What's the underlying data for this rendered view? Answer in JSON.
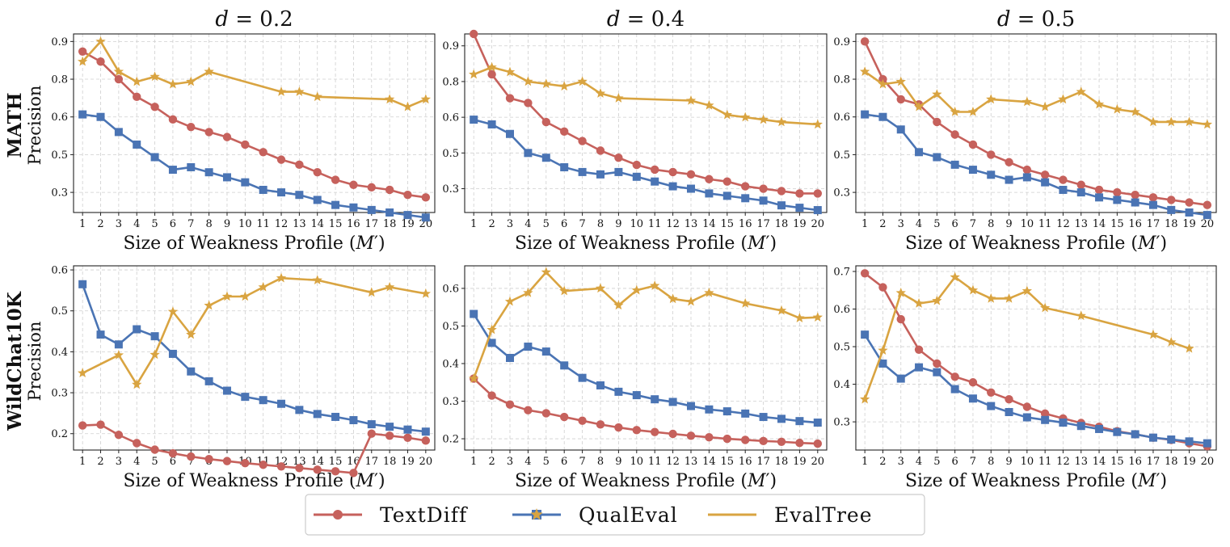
{
  "colors": {
    "TextDiff": "#c6615c",
    "QualEval": "#4a74b4",
    "EvalTree": "#d9a441"
  },
  "x_label_prefix": "Size of Weakness Profile (",
  "x_label_var": "M",
  "x_label_suffix": "′)",
  "row_titles": [
    "MATH",
    "WildChat10K"
  ],
  "y_label": "Precision",
  "legend": [
    "TextDiff",
    "QualEval",
    "EvalTree"
  ],
  "chart_data": [
    {
      "type": "line",
      "title_var": "d",
      "title_value": "= 0.2",
      "row": "MATH",
      "ylabel": "Precision",
      "ylim": [
        0.22,
        0.93
      ],
      "yticks": [
        0.3,
        0.45,
        0.6,
        0.75,
        0.9
      ],
      "ytick_labels": [
        "0.3",
        "0.5",
        "0.6",
        "0.8",
        "0.9"
      ],
      "grid": true,
      "series": [
        {
          "name": "TextDiff",
          "marker": "circle",
          "x": [
            1,
            2,
            3,
            4,
            5,
            6,
            7,
            8,
            9,
            10,
            11,
            12,
            13,
            14,
            15,
            16,
            17,
            18,
            19,
            20
          ],
          "values": [
            0.86,
            0.82,
            0.75,
            0.68,
            0.64,
            0.59,
            0.56,
            0.54,
            0.52,
            0.49,
            0.46,
            0.43,
            0.41,
            0.38,
            0.35,
            0.33,
            0.32,
            0.31,
            0.29,
            0.28
          ]
        },
        {
          "name": "QualEval",
          "marker": "square",
          "x": [
            1,
            2,
            3,
            4,
            5,
            6,
            7,
            8,
            9,
            10,
            11,
            12,
            13,
            14,
            15,
            16,
            17,
            18,
            19,
            20
          ],
          "values": [
            0.61,
            0.6,
            0.54,
            0.49,
            0.44,
            0.39,
            0.4,
            0.38,
            0.36,
            0.34,
            0.31,
            0.3,
            0.29,
            0.27,
            0.25,
            0.24,
            0.23,
            0.22,
            0.21,
            0.2
          ]
        },
        {
          "name": "EvalTree",
          "marker": "star",
          "x": [
            1,
            2,
            3,
            4,
            5,
            6,
            7,
            8,
            12,
            13,
            14,
            18,
            19,
            20
          ],
          "values": [
            0.82,
            0.9,
            0.78,
            0.74,
            0.76,
            0.73,
            0.74,
            0.78,
            0.7,
            0.7,
            0.68,
            0.67,
            0.64,
            0.67
          ]
        }
      ]
    },
    {
      "type": "line",
      "title_var": "d",
      "title_value": "= 0.4",
      "row": "MATH",
      "ylabel": "Precision",
      "ylim": [
        0.2,
        0.95
      ],
      "yticks": [
        0.3,
        0.45,
        0.6,
        0.75,
        0.9
      ],
      "ytick_labels": [
        "0.3",
        "0.5",
        "0.6",
        "0.8",
        "0.9"
      ],
      "grid": true,
      "series": [
        {
          "name": "TextDiff",
          "marker": "circle",
          "x": [
            1,
            2,
            3,
            4,
            5,
            6,
            7,
            8,
            9,
            10,
            11,
            12,
            13,
            14,
            15,
            16,
            17,
            18,
            19,
            20
          ],
          "values": [
            0.95,
            0.78,
            0.68,
            0.66,
            0.58,
            0.54,
            0.5,
            0.46,
            0.43,
            0.4,
            0.38,
            0.37,
            0.36,
            0.34,
            0.33,
            0.31,
            0.3,
            0.29,
            0.28,
            0.28
          ]
        },
        {
          "name": "QualEval",
          "marker": "square",
          "x": [
            1,
            2,
            3,
            4,
            5,
            6,
            7,
            8,
            9,
            10,
            11,
            12,
            13,
            14,
            15,
            16,
            17,
            18,
            19,
            20
          ],
          "values": [
            0.59,
            0.57,
            0.53,
            0.45,
            0.43,
            0.39,
            0.37,
            0.36,
            0.37,
            0.35,
            0.33,
            0.31,
            0.3,
            0.28,
            0.27,
            0.26,
            0.25,
            0.23,
            0.22,
            0.21
          ]
        },
        {
          "name": "EvalTree",
          "marker": "star",
          "x": [
            1,
            2,
            3,
            4,
            5,
            6,
            7,
            8,
            9,
            13,
            14,
            15,
            16,
            17,
            18,
            20
          ],
          "values": [
            0.78,
            0.81,
            0.79,
            0.75,
            0.74,
            0.73,
            0.75,
            0.7,
            0.68,
            0.67,
            0.65,
            0.61,
            0.6,
            0.59,
            0.58,
            0.57
          ]
        }
      ]
    },
    {
      "type": "line",
      "title_var": "d",
      "title_value": "= 0.5",
      "row": "MATH",
      "ylabel": "Precision",
      "ylim": [
        0.22,
        0.93
      ],
      "yticks": [
        0.3,
        0.45,
        0.6,
        0.75,
        0.9
      ],
      "ytick_labels": [
        "0.3",
        "0.5",
        "0.6",
        "0.8",
        "0.9"
      ],
      "grid": true,
      "series": [
        {
          "name": "TextDiff",
          "marker": "circle",
          "x": [
            1,
            2,
            3,
            4,
            5,
            6,
            7,
            8,
            9,
            10,
            11,
            12,
            13,
            14,
            15,
            16,
            17,
            18,
            19,
            20
          ],
          "values": [
            0.9,
            0.75,
            0.67,
            0.65,
            0.58,
            0.53,
            0.49,
            0.45,
            0.42,
            0.39,
            0.37,
            0.35,
            0.33,
            0.31,
            0.3,
            0.29,
            0.28,
            0.27,
            0.26,
            0.25
          ]
        },
        {
          "name": "QualEval",
          "marker": "square",
          "x": [
            1,
            2,
            3,
            4,
            5,
            6,
            7,
            8,
            9,
            10,
            11,
            12,
            13,
            14,
            15,
            16,
            17,
            18,
            19,
            20
          ],
          "values": [
            0.61,
            0.6,
            0.55,
            0.46,
            0.44,
            0.41,
            0.39,
            0.37,
            0.35,
            0.36,
            0.34,
            0.31,
            0.3,
            0.28,
            0.27,
            0.26,
            0.25,
            0.23,
            0.22,
            0.21
          ]
        },
        {
          "name": "EvalTree",
          "marker": "star",
          "x": [
            1,
            2,
            3,
            4,
            5,
            6,
            7,
            8,
            10,
            11,
            12,
            13,
            14,
            15,
            16,
            17,
            18,
            19,
            20
          ],
          "values": [
            0.78,
            0.73,
            0.74,
            0.64,
            0.69,
            0.62,
            0.62,
            0.67,
            0.66,
            0.64,
            0.67,
            0.7,
            0.65,
            0.63,
            0.62,
            0.58,
            0.58,
            0.58,
            0.57
          ]
        }
      ]
    },
    {
      "type": "line",
      "title_var": "",
      "title_value": "",
      "row": "WildChat10K",
      "ylabel": "Precision",
      "ylim": [
        0.16,
        0.61
      ],
      "yticks": [
        0.2,
        0.3,
        0.4,
        0.5,
        0.6
      ],
      "ytick_labels": [
        "0.2",
        "0.3",
        "0.4",
        "0.5",
        "0.6"
      ],
      "grid": true,
      "series": [
        {
          "name": "TextDiff",
          "marker": "circle",
          "x": [
            1,
            2,
            3,
            4,
            5,
            6,
            7,
            8,
            9,
            10,
            11,
            12,
            13,
            14,
            15,
            16,
            17,
            18,
            19,
            20
          ],
          "values": [
            0.22,
            0.222,
            0.197,
            0.177,
            0.161,
            0.152,
            0.144,
            0.138,
            0.133,
            0.128,
            0.124,
            0.12,
            0.116,
            0.112,
            0.108,
            0.104,
            0.2,
            0.195,
            0.19,
            0.183
          ]
        },
        {
          "name": "QualEval",
          "marker": "square",
          "x": [
            1,
            2,
            3,
            4,
            5,
            6,
            7,
            8,
            9,
            10,
            11,
            12,
            13,
            14,
            15,
            16,
            17,
            18,
            19,
            20
          ],
          "values": [
            0.565,
            0.442,
            0.418,
            0.455,
            0.438,
            0.395,
            0.352,
            0.328,
            0.305,
            0.29,
            0.282,
            0.273,
            0.258,
            0.248,
            0.241,
            0.233,
            0.223,
            0.217,
            0.21,
            0.205
          ]
        },
        {
          "name": "EvalTree",
          "marker": "star",
          "x": [
            1,
            3,
            4,
            5,
            6,
            7,
            8,
            9,
            10,
            11,
            12,
            14,
            17,
            18,
            20
          ],
          "values": [
            0.348,
            0.392,
            0.32,
            0.393,
            0.498,
            0.442,
            0.513,
            0.535,
            0.535,
            0.558,
            0.58,
            0.575,
            0.545,
            0.558,
            0.542
          ]
        }
      ]
    },
    {
      "type": "line",
      "title_var": "",
      "title_value": "",
      "row": "WildChat10K",
      "ylabel": "Precision",
      "ylim": [
        0.17,
        0.66
      ],
      "yticks": [
        0.2,
        0.3,
        0.4,
        0.5,
        0.6
      ],
      "ytick_labels": [
        "0.2",
        "0.3",
        "0.4",
        "0.5",
        "0.6"
      ],
      "grid": true,
      "series": [
        {
          "name": "TextDiff",
          "marker": "circle",
          "x": [
            1,
            2,
            3,
            4,
            5,
            6,
            7,
            8,
            9,
            10,
            11,
            12,
            13,
            14,
            15,
            16,
            17,
            18,
            19,
            20
          ],
          "values": [
            0.36,
            0.315,
            0.291,
            0.276,
            0.268,
            0.258,
            0.248,
            0.238,
            0.23,
            0.223,
            0.218,
            0.213,
            0.208,
            0.204,
            0.2,
            0.197,
            0.194,
            0.192,
            0.189,
            0.187
          ]
        },
        {
          "name": "QualEval",
          "marker": "square",
          "x": [
            1,
            2,
            3,
            4,
            5,
            6,
            7,
            8,
            9,
            10,
            11,
            12,
            13,
            14,
            15,
            16,
            17,
            18,
            19,
            20
          ],
          "values": [
            0.532,
            0.455,
            0.415,
            0.445,
            0.432,
            0.395,
            0.362,
            0.342,
            0.325,
            0.316,
            0.305,
            0.298,
            0.287,
            0.278,
            0.273,
            0.267,
            0.258,
            0.253,
            0.247,
            0.243
          ]
        },
        {
          "name": "EvalTree",
          "marker": "star",
          "x": [
            1,
            2,
            3,
            4,
            5,
            6,
            8,
            9,
            10,
            11,
            12,
            13,
            14,
            16,
            18,
            19,
            20
          ],
          "values": [
            0.36,
            0.49,
            0.565,
            0.588,
            0.643,
            0.593,
            0.6,
            0.555,
            0.595,
            0.607,
            0.572,
            0.565,
            0.588,
            0.56,
            0.541,
            0.521,
            0.523
          ]
        }
      ]
    },
    {
      "type": "line",
      "title_var": "",
      "title_value": "",
      "row": "WildChat10K",
      "ylabel": "Precision",
      "ylim": [
        0.225,
        0.715
      ],
      "yticks": [
        0.3,
        0.4,
        0.5,
        0.6,
        0.7
      ],
      "ytick_labels": [
        "0.3",
        "0.4",
        "0.5",
        "0.6",
        "0.7"
      ],
      "grid": true,
      "series": [
        {
          "name": "TextDiff",
          "marker": "circle",
          "x": [
            1,
            2,
            3,
            4,
            5,
            6,
            7,
            8,
            9,
            10,
            11,
            12,
            13,
            14,
            15,
            16,
            17,
            18,
            19,
            20
          ],
          "values": [
            0.695,
            0.658,
            0.573,
            0.492,
            0.455,
            0.42,
            0.405,
            0.378,
            0.36,
            0.34,
            0.322,
            0.309,
            0.297,
            0.287,
            0.275,
            0.267,
            0.258,
            0.252,
            0.243,
            0.235
          ]
        },
        {
          "name": "QualEval",
          "marker": "square",
          "x": [
            1,
            2,
            3,
            4,
            5,
            6,
            7,
            8,
            9,
            10,
            11,
            12,
            13,
            14,
            15,
            16,
            17,
            18,
            19,
            20
          ],
          "values": [
            0.532,
            0.455,
            0.415,
            0.445,
            0.432,
            0.387,
            0.362,
            0.342,
            0.326,
            0.312,
            0.305,
            0.298,
            0.289,
            0.281,
            0.273,
            0.267,
            0.258,
            0.253,
            0.248,
            0.243
          ]
        },
        {
          "name": "EvalTree",
          "marker": "star",
          "x": [
            1,
            2,
            3,
            4,
            5,
            6,
            7,
            8,
            9,
            10,
            11,
            13,
            17,
            18,
            19
          ],
          "values": [
            0.36,
            0.49,
            0.643,
            0.615,
            0.622,
            0.685,
            0.65,
            0.628,
            0.628,
            0.648,
            0.603,
            0.582,
            0.532,
            0.512,
            0.495
          ]
        }
      ]
    }
  ]
}
